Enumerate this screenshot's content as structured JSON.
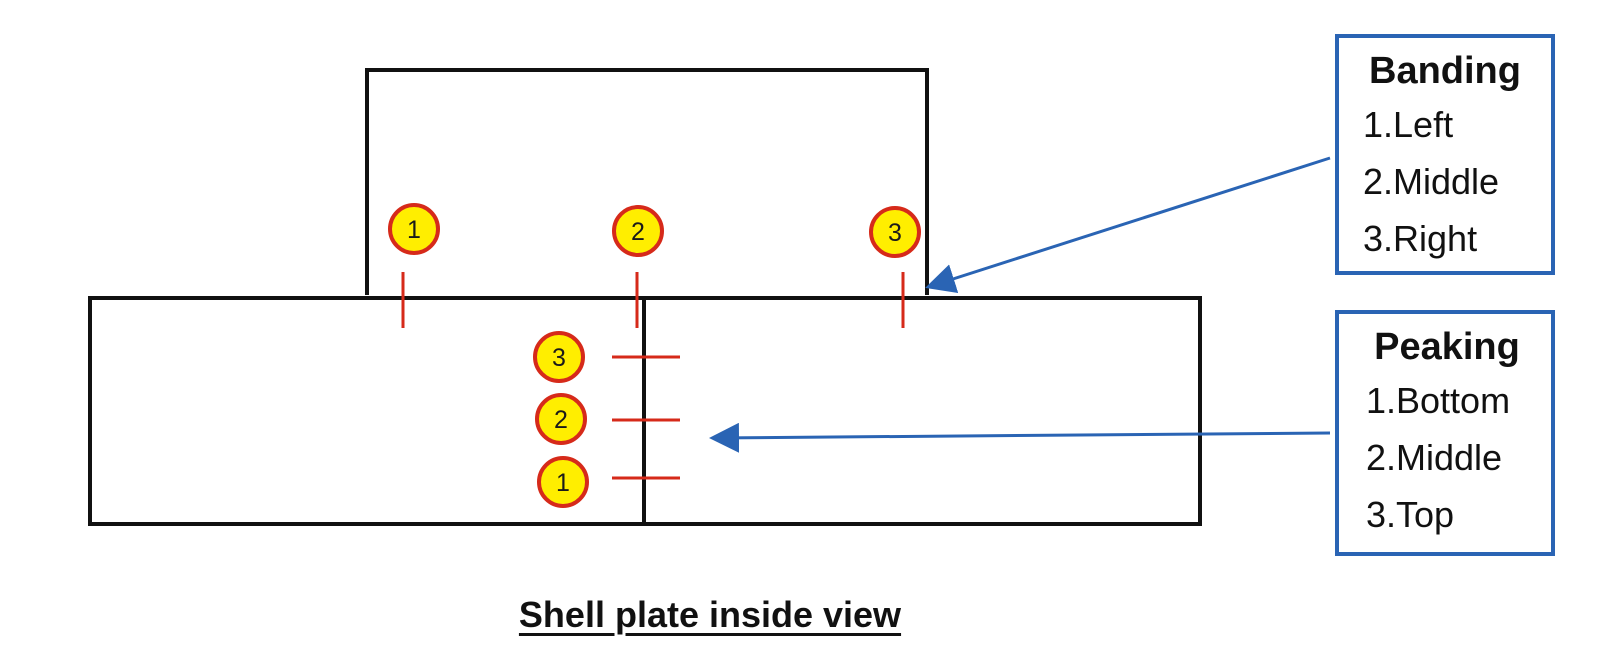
{
  "banding": {
    "title": "Banding",
    "items": [
      "1.Left",
      "2.Middle",
      "3.Right"
    ]
  },
  "peaking": {
    "title": "Peaking",
    "items": [
      "1.Bottom",
      "2.Middle",
      "3.Top"
    ]
  },
  "caption": "Shell plate inside view",
  "markers": {
    "banding": [
      "1",
      "2",
      "3"
    ],
    "peaking": [
      "3",
      "2",
      "1"
    ]
  },
  "colors": {
    "outline": "#111111",
    "marker_fill": "#ffee00",
    "marker_ring": "#d62a1a",
    "tick": "#d62a1a",
    "arrow": "#2a64b4"
  }
}
